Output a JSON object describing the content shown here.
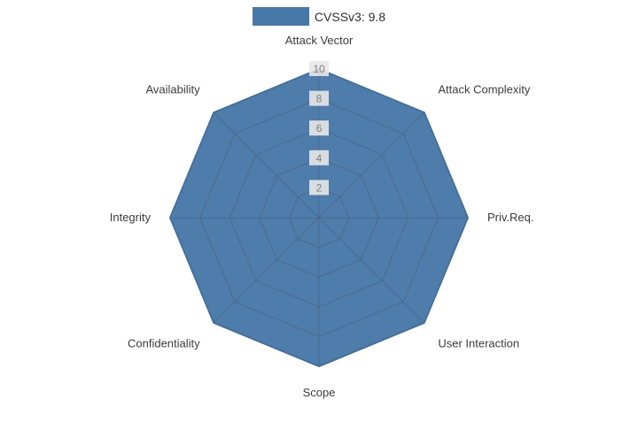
{
  "chart_data": {
    "type": "radar",
    "title": "CVSSv3: 9.8",
    "legend": {
      "label": "CVSSv3: 9.8",
      "position": "top-center"
    },
    "categories": [
      "Attack Vector",
      "Attack Complexity",
      "Priv.Req.",
      "User Interaction",
      "Scope",
      "Confidentiality",
      "Integrity",
      "Availability"
    ],
    "series": [
      {
        "name": "CVSSv3: 9.8",
        "values": [
          10,
          10,
          10,
          10,
          10,
          10,
          10,
          10
        ]
      }
    ],
    "ticks": [
      2,
      4,
      6,
      8,
      10
    ],
    "axis_range": [
      0,
      10
    ],
    "grid": "on",
    "colors": {
      "fill": "#4878A8",
      "stroke": "#4878A8",
      "grid_line": "#444444",
      "tick_text": "#808080",
      "tick_background": "#e8e8e8",
      "axis_label_text": "#3b3b3b",
      "background": "#ffffff"
    }
  }
}
